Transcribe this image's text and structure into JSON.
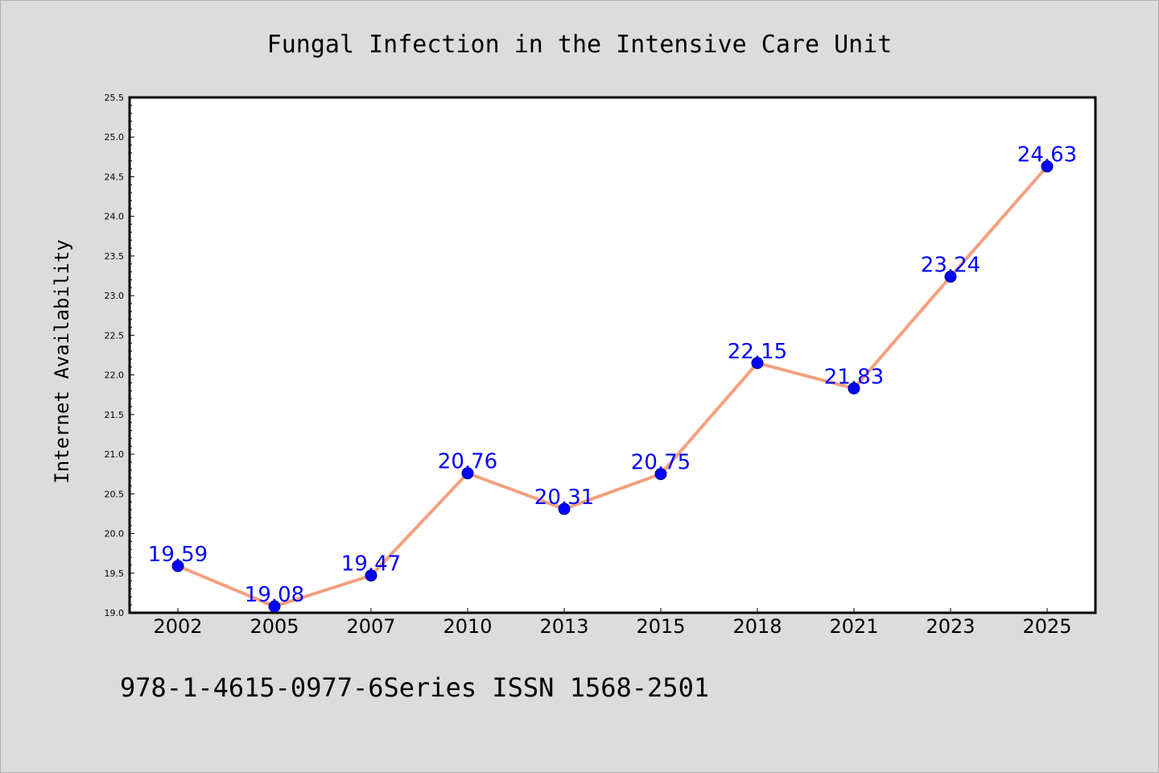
{
  "footer_text": "978-1-4615-0977-6Series ISSN 1568-2501",
  "colors": {
    "background": "#dcdcdc",
    "plot_background": "#ffffff",
    "line": "#f4a07e",
    "marker": "#0000ff",
    "data_label": "#0000ff"
  },
  "chart_data": {
    "type": "line",
    "title": "Fungal Infection in the Intensive Care Unit",
    "xlabel": "",
    "ylabel": "Internet Availability",
    "categories": [
      "2002",
      "2005",
      "2007",
      "2010",
      "2013",
      "2015",
      "2018",
      "2021",
      "2023",
      "2025"
    ],
    "series": [
      {
        "values": [
          19.59,
          19.08,
          19.47,
          20.76,
          20.31,
          20.75,
          22.15,
          21.83,
          23.24,
          24.63
        ]
      }
    ],
    "ylim": [
      19.0,
      25.5
    ],
    "yticks": [
      "19.0",
      "19.5",
      "20.0",
      "20.5",
      "21.0",
      "21.5",
      "22.0",
      "22.5",
      "23.0",
      "23.5",
      "24.0",
      "24.5",
      "25.0",
      "25.5"
    ],
    "data_labels": [
      "19.59",
      "19.08",
      "19.47",
      "20.76",
      "20.31",
      "20.75",
      "22.15",
      "21.83",
      "23.24",
      "24.63"
    ],
    "grid": false,
    "legend": "none"
  }
}
